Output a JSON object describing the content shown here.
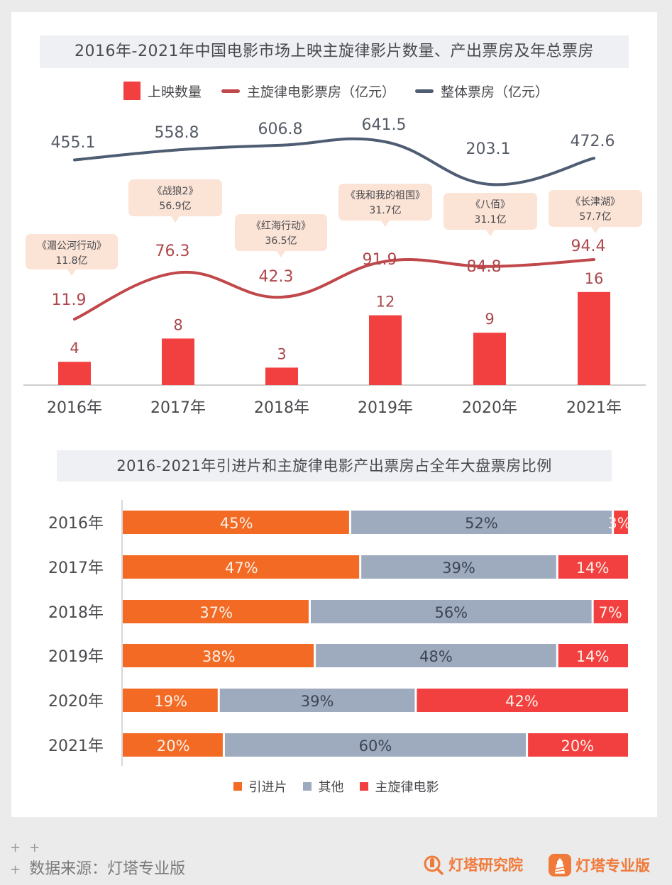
{
  "chart_data": [
    {
      "type": "bar+line",
      "title": "2016年-2021年中国电影市场上映主旋律影片数量、产出票房及年总票房",
      "categories": [
        "2016年",
        "2017年",
        "2018年",
        "2019年",
        "2020年",
        "2021年"
      ],
      "series": [
        {
          "name": "上映数量",
          "kind": "bar",
          "color": "#f23f3f",
          "values": [
            4,
            8,
            3,
            12,
            9,
            16
          ]
        },
        {
          "name": "主旋律电影票房（亿元）",
          "kind": "line",
          "color": "#c0474a",
          "values": [
            11.9,
            76.3,
            42.3,
            91.9,
            84.8,
            94.4
          ]
        },
        {
          "name": "整体票房（亿元）",
          "kind": "line",
          "color": "#4f5d73",
          "values": [
            455.1,
            558.8,
            606.8,
            641.5,
            203.1,
            472.6
          ]
        }
      ],
      "annotations": [
        {
          "film": "《湄公河行动》",
          "box": "11.8亿"
        },
        {
          "film": "《战狼2》",
          "box": "56.9亿"
        },
        {
          "film": "《红海行动》",
          "box": "36.5亿"
        },
        {
          "film": "《我和我的祖国》",
          "box": "31.7亿"
        },
        {
          "film": "《八佰》",
          "box": "31.1亿"
        },
        {
          "film": "《长津湖》",
          "box": "57.7亿"
        }
      ],
      "legend": "top-center",
      "grid": false
    },
    {
      "type": "bar",
      "orientation": "horizontal-stacked-100",
      "title": "2016-2021年引进片和主旋律电影产出票房占全年大盘票房比例",
      "categories": [
        "2016年",
        "2017年",
        "2018年",
        "2019年",
        "2020年",
        "2021年"
      ],
      "series": [
        {
          "name": "引进片",
          "color": "#f26a24",
          "values": [
            45,
            47,
            37,
            38,
            19,
            20
          ]
        },
        {
          "name": "其他",
          "color": "#9eabbf",
          "values": [
            52,
            39,
            56,
            48,
            39,
            60
          ]
        },
        {
          "name": "主旋律电影",
          "color": "#f23f3f",
          "values": [
            3,
            14,
            7,
            14,
            42,
            20
          ]
        }
      ],
      "unit": "%",
      "legend": "bottom-center",
      "grid": false
    }
  ],
  "footer": {
    "source": "数据来源：灯塔专业版",
    "plus": "+",
    "brand1": "灯塔研究院",
    "brand2": "灯塔专业版"
  }
}
